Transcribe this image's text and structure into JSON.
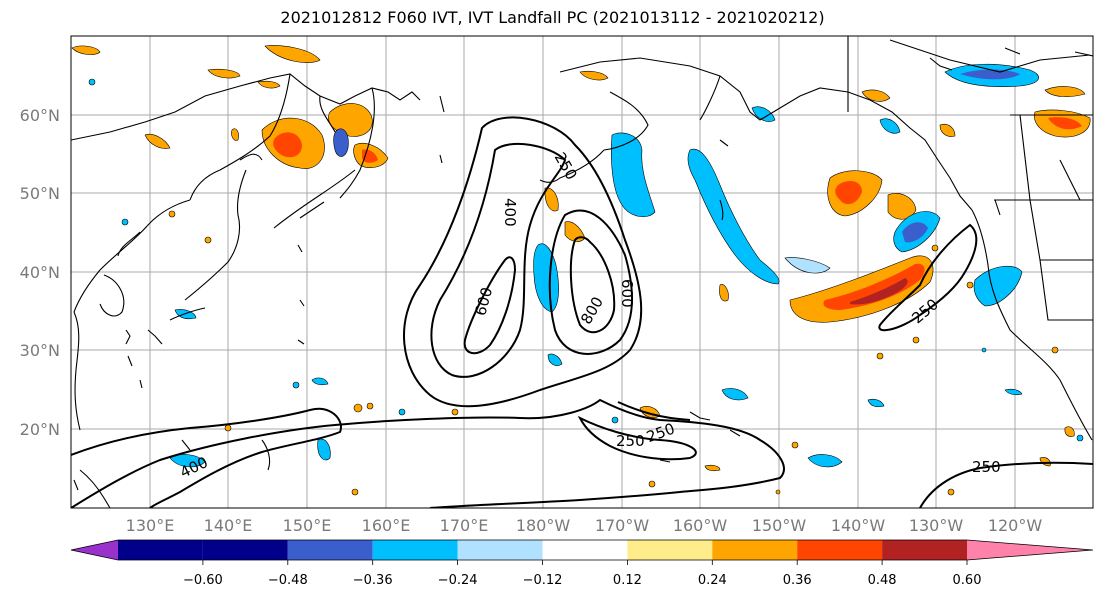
{
  "title": "2021012812 F060 IVT, IVT Landfall PC (2021013112 - 2021020212)",
  "lat_labels": [
    "60°N",
    "50°N",
    "40°N",
    "30°N",
    "20°N"
  ],
  "lon_labels": [
    "130°E",
    "140°E",
    "150°E",
    "160°E",
    "170°E",
    "180°W",
    "170°W",
    "160°W",
    "150°W",
    "140°W",
    "130°W",
    "120°W"
  ],
  "contour_labels": [
    "250",
    "400",
    "600",
    "800",
    "600",
    "250",
    "400",
    "250",
    "250",
    "250"
  ],
  "colorbar": {
    "colors": [
      "#9932cc",
      "#00008b",
      "#3a5fcd",
      "#00bfff",
      "#b0e2ff",
      "#ffffff",
      "#ffec8b",
      "#ffa500",
      "#ff4500",
      "#b22222",
      "#ff82ab"
    ],
    "ticks": [
      "−0.60",
      "−0.48",
      "−0.36",
      "−0.24",
      "−0.12",
      "0.12",
      "0.24",
      "0.36",
      "0.48",
      "0.60"
    ]
  }
}
